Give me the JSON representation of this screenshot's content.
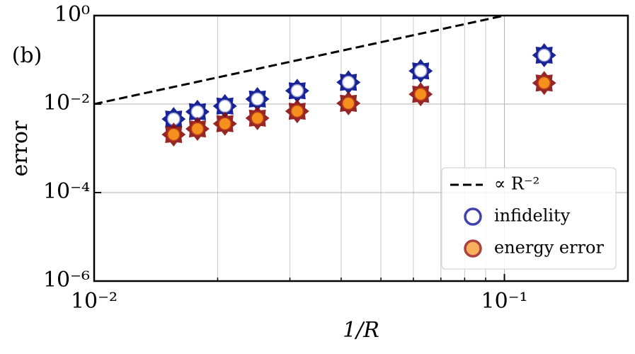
{
  "chart_data": {
    "type": "scatter",
    "annotation": "(b)",
    "xlabel": "1/R",
    "ylabel": "error",
    "log_x": true,
    "log_y": true,
    "grid": true,
    "legend_loc": "lower right",
    "xlim": [
      0.01,
      0.2
    ],
    "ylim": [
      1e-06,
      1
    ],
    "xticks": [
      {
        "value": 0.01,
        "label": "10⁻²"
      },
      {
        "value": 0.1,
        "label": "10⁻¹"
      }
    ],
    "xminor": [
      0.02,
      0.03,
      0.04,
      0.05,
      0.06,
      0.07,
      0.08,
      0.09,
      0.2
    ],
    "yticks": [
      {
        "value": 1e-06,
        "label": "10⁻⁶"
      },
      {
        "value": 0.0001,
        "label": "10⁻⁴"
      },
      {
        "value": 0.01,
        "label": "10⁻²"
      },
      {
        "value": 1,
        "label": "10⁰"
      }
    ],
    "x": [
      0.015625,
      0.017857,
      0.020833,
      0.025,
      0.03125,
      0.041667,
      0.0625,
      0.125
    ],
    "series": [
      {
        "name": "∝ R⁻²",
        "kind": "line",
        "color": "#000000",
        "x": [
          0.01,
          0.1
        ],
        "values": [
          0.01,
          1
        ]
      },
      {
        "name": "infidelity",
        "kind": "marker",
        "color": "#000c8c",
        "fill": "#ffffff",
        "values": [
          0.0046,
          0.0067,
          0.009,
          0.013,
          0.02,
          0.031,
          0.056,
          0.127
        ]
      },
      {
        "name": "energy error",
        "kind": "marker",
        "color": "#8b1010",
        "fill": "#f5901e",
        "values": [
          0.00205,
          0.00275,
          0.0036,
          0.0048,
          0.0069,
          0.0104,
          0.0167,
          0.03
        ]
      }
    ]
  }
}
